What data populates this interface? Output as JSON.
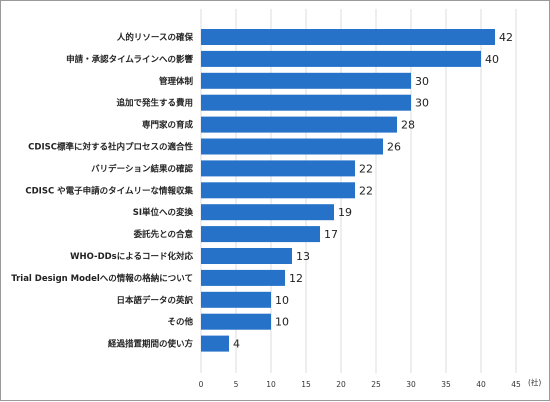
{
  "chart_data": {
    "type": "bar",
    "orientation": "horizontal",
    "categories": [
      "人的リソースの確保",
      "申請・承認タイムラインへの影響",
      "管理体制",
      "追加で発生する費用",
      "専門家の育成",
      "CDISC標準に対する社内プロセスの適合性",
      "バリデーション結果の確認",
      "CDISC や電子申請のタイムリーな情報収集",
      "SI単位への変換",
      "委託先との合意",
      "WHO-DDsによるコード化対応",
      "Trial Design Modelへの情報の格納について",
      "日本語データの英訳",
      "その他",
      "経過措置期間の使い方"
    ],
    "values": [
      42,
      40,
      30,
      30,
      28,
      26,
      22,
      22,
      19,
      17,
      13,
      12,
      10,
      10,
      4
    ],
    "title": "",
    "xlabel": "(社)",
    "ylabel": "",
    "xlim": [
      0,
      45
    ],
    "xticks": [
      0,
      5,
      10,
      15,
      20,
      25,
      30,
      35,
      40,
      45
    ],
    "grid": "vertical",
    "legend": "none",
    "bar_color": "#2672c9",
    "grid_color": "#dcdcdc"
  }
}
